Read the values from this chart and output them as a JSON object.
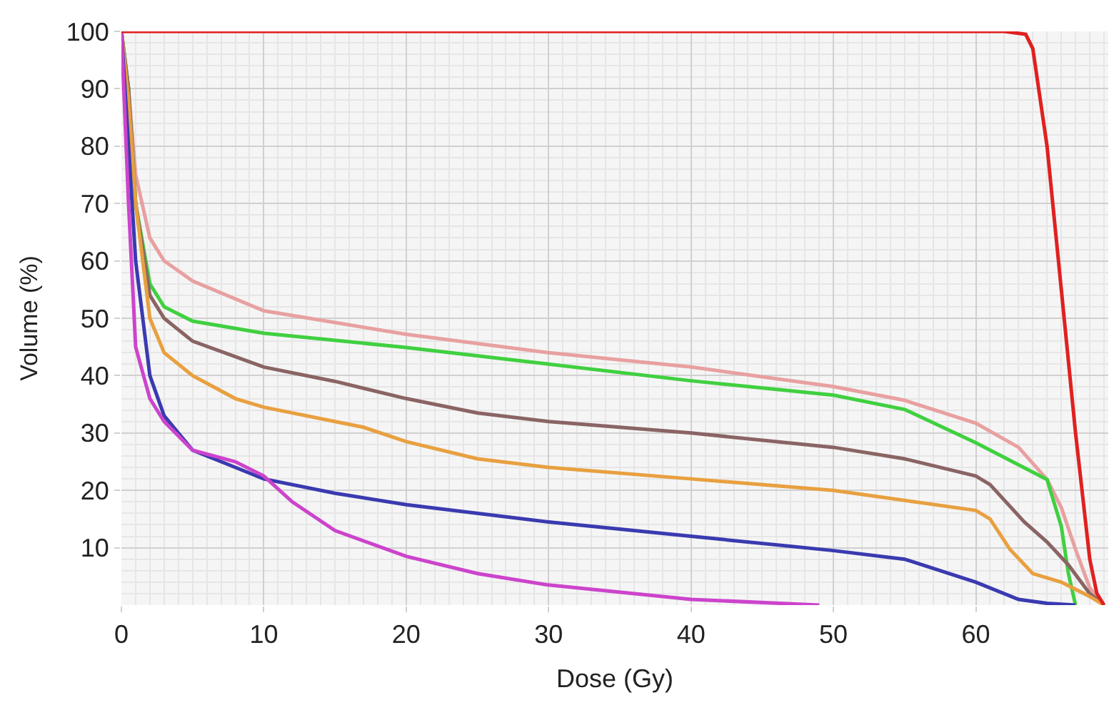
{
  "chart_data": {
    "type": "line",
    "xlabel": "Dose (Gy)",
    "ylabel": "Volume (%)",
    "xlim": [
      0,
      69.3
    ],
    "ylim": [
      0,
      100
    ],
    "xticks": [
      0,
      10,
      20,
      30,
      40,
      50,
      60
    ],
    "yticks": [
      10,
      20,
      30,
      40,
      50,
      60,
      70,
      80,
      90,
      100
    ],
    "grid": true,
    "marker": "none",
    "line_style": "solid",
    "series": [
      {
        "color": "#e8a0a0",
        "x": [
          0,
          0.5,
          1,
          2,
          3,
          5,
          10,
          20,
          30,
          40,
          50,
          55,
          60,
          63,
          65,
          66,
          67,
          68,
          69
        ],
        "values": [
          100,
          90,
          75,
          64,
          60,
          56.5,
          51.3,
          47.2,
          44,
          41.5,
          38.1,
          35.7,
          31.7,
          27.5,
          21.9,
          17,
          9.7,
          3,
          0
        ]
      },
      {
        "color": "#40d040",
        "x": [
          0,
          0.5,
          1,
          2,
          3,
          5,
          10,
          20,
          30,
          40,
          50,
          55,
          60,
          65,
          65.5,
          66,
          66.5,
          67
        ],
        "values": [
          100,
          90,
          70,
          56,
          52,
          49.5,
          47.4,
          44.9,
          42,
          39.1,
          36.6,
          34.1,
          28.3,
          21.9,
          17.8,
          13.7,
          5.5,
          0
        ]
      },
      {
        "color": "#8a6464",
        "x": [
          0,
          0.5,
          1,
          2,
          3,
          5,
          10,
          15,
          20,
          25,
          30,
          40,
          50,
          55,
          60,
          61,
          63.4,
          65,
          66.5,
          68,
          69
        ],
        "values": [
          100,
          90,
          70,
          54,
          50,
          46,
          41.5,
          39,
          36,
          33.5,
          32,
          30,
          27.5,
          25.5,
          22.5,
          21,
          14.5,
          11,
          7,
          2,
          0
        ]
      },
      {
        "color": "#e8a040",
        "x": [
          0,
          0.5,
          1,
          2,
          3,
          5,
          8,
          10,
          15,
          17,
          20,
          25,
          30,
          40,
          50,
          60,
          61,
          62.4,
          64,
          66,
          68,
          69
        ],
        "values": [
          100,
          88,
          70,
          50,
          44,
          40,
          36,
          34.5,
          32,
          31,
          28.5,
          25.5,
          24,
          22,
          20,
          16.5,
          15,
          9.7,
          5.5,
          4,
          1.5,
          0
        ]
      },
      {
        "color": "#3a3ab0",
        "x": [
          0,
          0.5,
          1,
          2,
          3,
          5,
          8,
          10,
          15,
          20,
          30,
          40,
          50,
          55,
          60,
          63,
          65,
          67
        ],
        "values": [
          100,
          80,
          60,
          40,
          33,
          27,
          24,
          22,
          19.5,
          17.5,
          14.5,
          12,
          9.5,
          8,
          4,
          1,
          0.3,
          0
        ]
      },
      {
        "color": "#cc44cc",
        "x": [
          0,
          0.5,
          1,
          2,
          3,
          5,
          8,
          10,
          12,
          15,
          20,
          25,
          30,
          40,
          49
        ],
        "values": [
          100,
          70,
          45,
          36,
          32,
          27,
          25,
          22.5,
          18,
          13,
          8.5,
          5.5,
          3.5,
          1,
          0
        ]
      },
      {
        "color": "#e02020",
        "x": [
          0,
          62,
          63.5,
          64,
          65,
          66,
          67,
          68,
          68.5,
          69
        ],
        "values": [
          100,
          100,
          99.5,
          97,
          80,
          55,
          30,
          8,
          2,
          0
        ]
      }
    ]
  }
}
